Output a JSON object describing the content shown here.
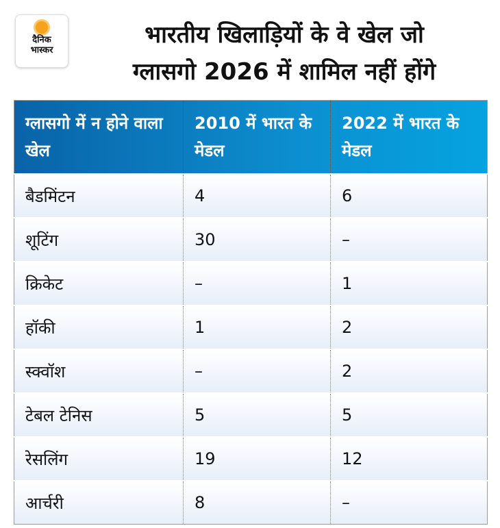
{
  "logo": {
    "line1": "दैनिक",
    "line2": "भास्कर"
  },
  "title": {
    "line1": "भारतीय खिलाड़ियों के वे खेल जो",
    "line2": "ग्लासगो 2026 में शामिल नहीं होंगे"
  },
  "table": {
    "headers": [
      "ग्लासगो में न होने वाला खेल",
      "2010 में भारत के मेडल",
      "2022 में भारत के मेडल"
    ],
    "rows": [
      [
        "बैडमिंटन",
        "4",
        "6"
      ],
      [
        "शूटिंग",
        "30",
        "–"
      ],
      [
        "क्रिकेट",
        "–",
        "1"
      ],
      [
        "हॉकी",
        "1",
        "2"
      ],
      [
        "स्क्वॉश",
        "–",
        "2"
      ],
      [
        "टेबल टेनिस",
        "5",
        "5"
      ],
      [
        "रेसलिंग",
        "19",
        "12"
      ],
      [
        "आर्चरी",
        "8",
        "–"
      ]
    ]
  }
}
